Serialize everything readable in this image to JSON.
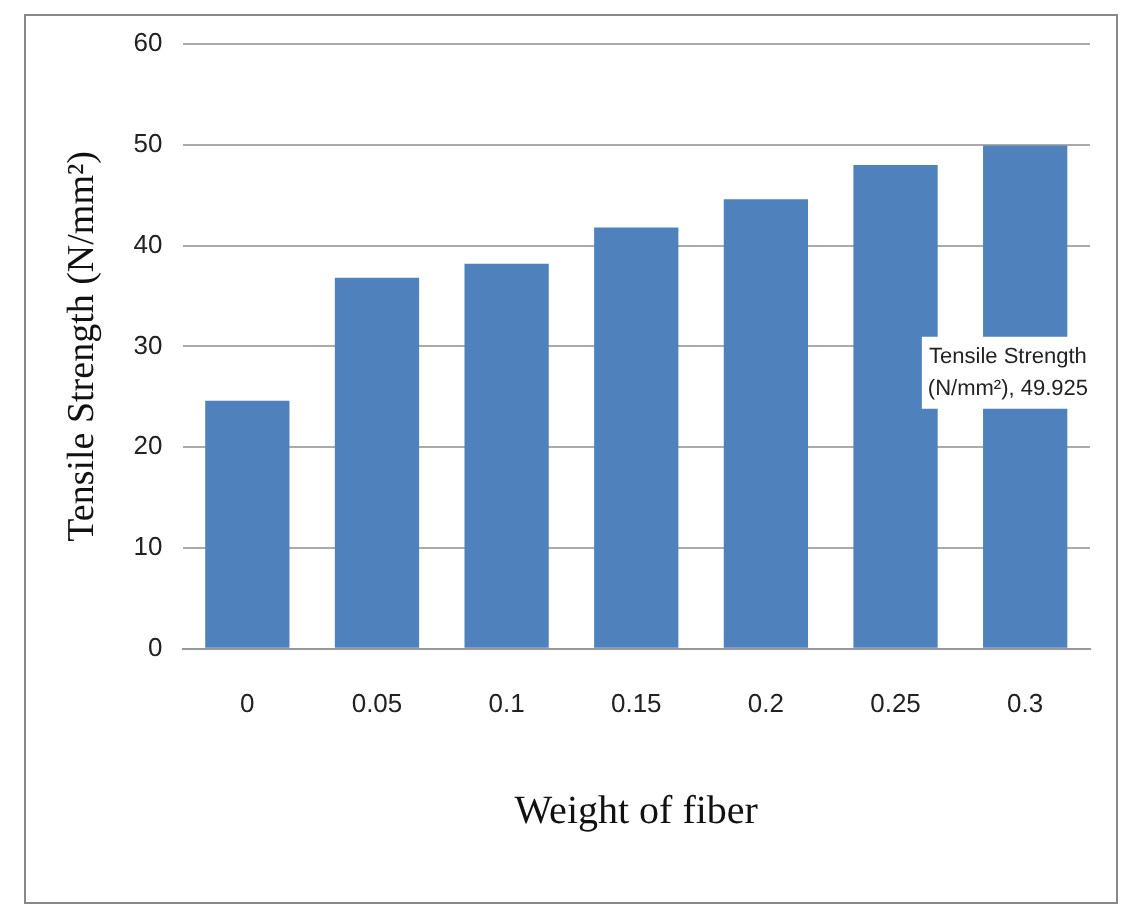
{
  "chart_data": {
    "type": "bar",
    "xlabel": "Weight of fiber",
    "ylabel": "Tensile Strength (N/mm²)",
    "categories": [
      "0",
      "0.05",
      "0.1",
      "0.15",
      "0.2",
      "0.25",
      "0.3"
    ],
    "values": [
      24.6,
      36.8,
      38.2,
      41.8,
      44.6,
      48.0,
      49.925
    ],
    "color": "#4f81bd",
    "ylim": [
      0,
      60
    ],
    "yticks": [
      0,
      10,
      20,
      30,
      40,
      50,
      60
    ],
    "grid": "y",
    "value_labels": [
      null,
      null,
      null,
      null,
      null,
      null,
      "Tensile Strength\n(N/mm²), 49.925"
    ]
  }
}
